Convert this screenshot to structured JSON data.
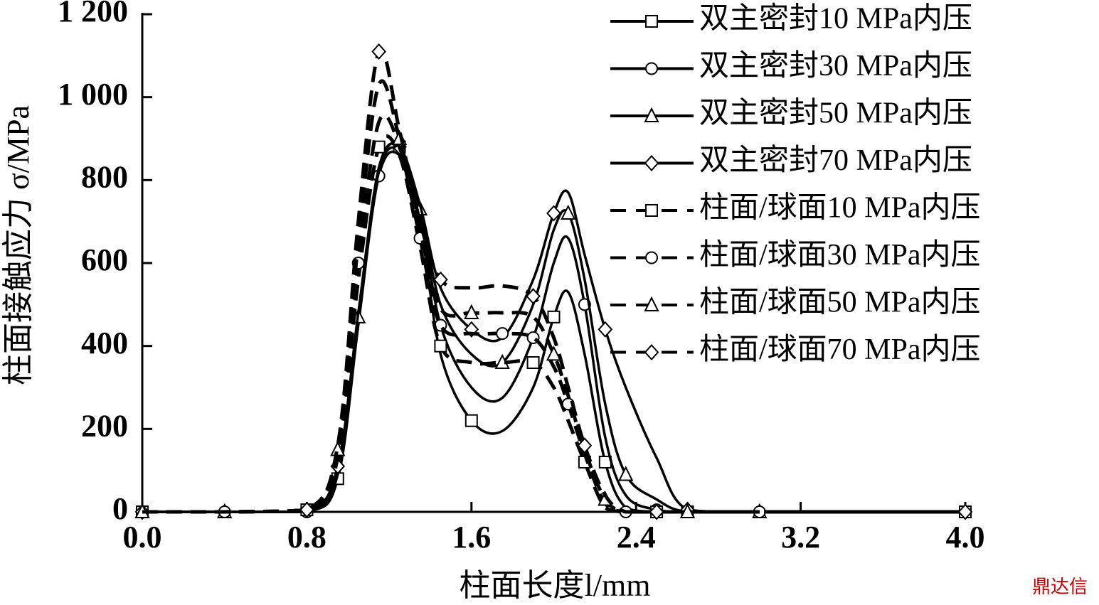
{
  "chart_data": {
    "type": "line",
    "xlabel": "柱面长度l/mm",
    "ylabel": "柱面接触应力 σ/MPa",
    "watermark": "鼎达信",
    "x": [
      0,
      0.4,
      0.8,
      0.95,
      1.05,
      1.15,
      1.25,
      1.35,
      1.45,
      1.6,
      1.75,
      1.9,
      2.0,
      2.07,
      2.15,
      2.25,
      2.35,
      2.5,
      2.65,
      3.0,
      4.0
    ],
    "series": [
      {
        "name": "双主密封10 MPa内压",
        "color": "#000000",
        "linestyle": "solid",
        "marker": "square",
        "values": [
          0,
          0,
          0,
          80,
          450,
          820,
          880,
          700,
          380,
          220,
          195,
          300,
          470,
          530,
          380,
          120,
          10,
          0,
          0,
          0,
          0
        ]
      },
      {
        "name": "双主密封30 MPa内压",
        "color": "#000000",
        "linestyle": "solid",
        "marker": "circle",
        "values": [
          0,
          0,
          0,
          90,
          460,
          810,
          860,
          720,
          450,
          300,
          275,
          420,
          600,
          660,
          500,
          180,
          40,
          5,
          0,
          0,
          0
        ]
      },
      {
        "name": "双主密封50 MPa内压",
        "color": "#000000",
        "linestyle": "solid",
        "marker": "triangle",
        "values": [
          0,
          0,
          0,
          100,
          470,
          820,
          870,
          730,
          500,
          380,
          360,
          500,
          680,
          720,
          560,
          260,
          90,
          30,
          0,
          0,
          0
        ]
      },
      {
        "name": "双主密封70 MPa内压",
        "color": "#000000",
        "linestyle": "solid",
        "marker": "diamond",
        "values": [
          0,
          0,
          0,
          110,
          480,
          830,
          880,
          740,
          540,
          440,
          420,
          560,
          720,
          770,
          620,
          440,
          300,
          130,
          5,
          0,
          0
        ]
      },
      {
        "name": "柱面/球面10 MPa内压",
        "color": "#000000",
        "linestyle": "dashed",
        "marker": "square",
        "values": [
          0,
          0,
          5,
          130,
          560,
          880,
          860,
          640,
          400,
          360,
          360,
          360,
          300,
          220,
          120,
          10,
          0,
          0,
          0,
          0,
          0
        ]
      },
      {
        "name": "柱面/球面30 MPa内压",
        "color": "#000000",
        "linestyle": "dashed",
        "marker": "circle",
        "values": [
          0,
          0,
          5,
          140,
          600,
          940,
          880,
          660,
          450,
          430,
          430,
          420,
          350,
          260,
          140,
          20,
          0,
          0,
          0,
          0,
          0
        ]
      },
      {
        "name": "柱面/球面50 MPa内压",
        "color": "#000000",
        "linestyle": "dashed",
        "marker": "triangle",
        "values": [
          0,
          0,
          5,
          150,
          650,
          1030,
          900,
          680,
          490,
          480,
          480,
          470,
          380,
          280,
          150,
          30,
          0,
          0,
          0,
          0,
          0
        ]
      },
      {
        "name": "柱面/球面70 MPa内压",
        "color": "#000000",
        "linestyle": "dashed",
        "marker": "diamond",
        "values": [
          0,
          0,
          5,
          160,
          700,
          1110,
          920,
          700,
          560,
          540,
          545,
          520,
          420,
          300,
          160,
          40,
          0,
          0,
          0,
          0,
          0
        ]
      }
    ],
    "xlim": [
      0,
      4
    ],
    "xticks": [
      {
        "value": 0,
        "label": "0.0"
      },
      0.8,
      1.6,
      2.4,
      3.2,
      {
        "value": 4,
        "label": "4.0"
      }
    ],
    "ylim": [
      0,
      1200
    ],
    "yticks": [
      0,
      200,
      400,
      600,
      800,
      {
        "value": 1000,
        "label": "1 000"
      },
      {
        "value": 1200,
        "label": "1 200"
      }
    ],
    "grid": false,
    "legend": "upper right"
  }
}
